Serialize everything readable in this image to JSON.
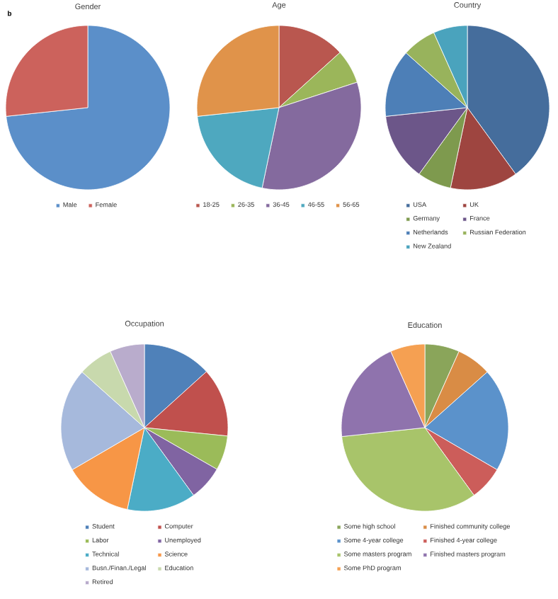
{
  "chart_data": [
    {
      "type": "pie",
      "title": "Gender",
      "annotations": [
        "b"
      ],
      "categories": [
        "Male",
        "Female"
      ],
      "values": [
        73.3,
        26.7
      ],
      "colors": [
        "#5b8fc9",
        "#cc625c"
      ],
      "legend": "bottom"
    },
    {
      "type": "pie",
      "title": "Age",
      "categories": [
        "18-25",
        "26-35",
        "36-45",
        "46-55",
        "56-65"
      ],
      "values": [
        13.3,
        6.7,
        33.3,
        20,
        26.7
      ],
      "colors": [
        "#b9574f",
        "#9bb65a",
        "#846a9e",
        "#4ea8bf",
        "#e0934a"
      ],
      "legend": "bottom"
    },
    {
      "type": "pie",
      "title": "Country",
      "categories": [
        "USA",
        "UK",
        "Germany",
        "France",
        "Netherlands",
        "Russian Federation",
        "New Zealand"
      ],
      "values": [
        40,
        13.3,
        6.7,
        13.3,
        13.3,
        6.7,
        6.7
      ],
      "colors": [
        "#456d9c",
        "#9e4540",
        "#7e9a4e",
        "#6c5689",
        "#4d7fb7",
        "#98b35c",
        "#4aa3bd"
      ],
      "legend": "bottom"
    },
    {
      "type": "pie",
      "title": "Occupation",
      "categories": [
        "Student",
        "Computer",
        "Labor",
        "Unemployed",
        "Technical",
        "Science",
        "Busn./Finan./Legal",
        "Education",
        "Retired"
      ],
      "values": [
        13.3,
        13.3,
        6.7,
        6.7,
        13.3,
        13.3,
        20,
        6.7,
        6.7
      ],
      "colors": [
        "#4f81b9",
        "#c0504d",
        "#9bbb59",
        "#8064a2",
        "#4bacc6",
        "#f79646",
        "#a6b9dc",
        "#c8d9ad",
        "#b9accc"
      ],
      "legend": "bottom"
    },
    {
      "type": "pie",
      "title": "Education",
      "categories": [
        "Some high school",
        "Finished community college",
        "Some 4-year college",
        "Finished 4-year college",
        "Some masters program",
        "Finished masters program",
        "Some PhD program"
      ],
      "values": [
        6.7,
        6.7,
        20,
        6.6,
        33.3,
        20,
        6.7
      ],
      "colors": [
        "#8aa55a",
        "#d98c45",
        "#5b92cb",
        "#cc5d5a",
        "#a8c46a",
        "#8f73ad",
        "#f5a052"
      ],
      "legend": "bottom"
    }
  ]
}
